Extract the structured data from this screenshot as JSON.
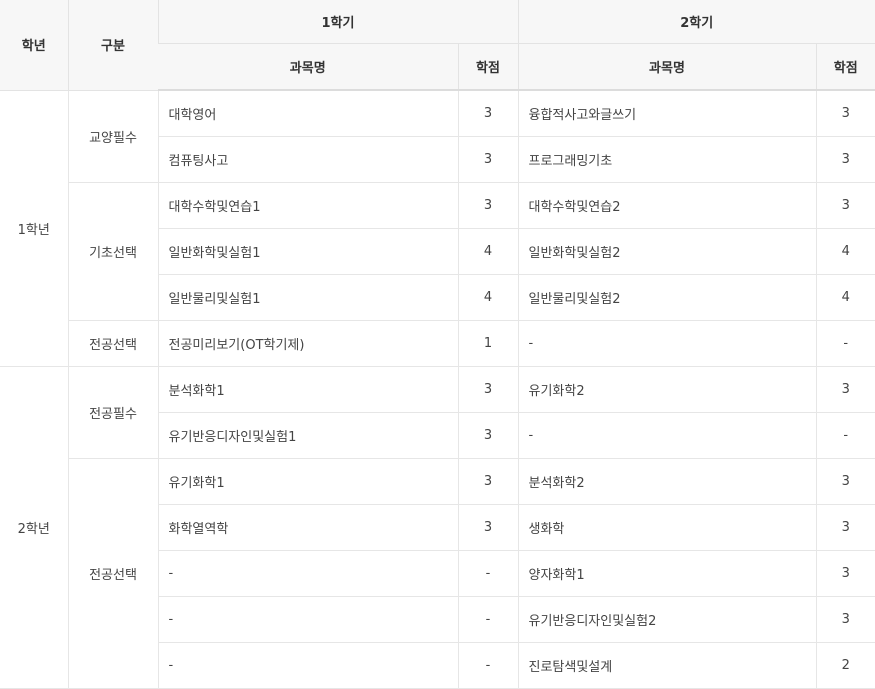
{
  "header": {
    "year": "학년",
    "category": "구분",
    "semester1": "1학기",
    "semester2": "2학기",
    "course_name": "과목명",
    "credits": "학점"
  },
  "years": [
    {
      "year": "1학년",
      "groups": [
        {
          "category": "교양필수",
          "rows": [
            {
              "s1_name": "대학영어",
              "s1_credit": "3",
              "s2_name": "융합적사고와글쓰기",
              "s2_credit": "3"
            },
            {
              "s1_name": "컴퓨팅사고",
              "s1_credit": "3",
              "s2_name": "프로그래밍기초",
              "s2_credit": "3"
            }
          ]
        },
        {
          "category": "기초선택",
          "rows": [
            {
              "s1_name": "대학수학및연습1",
              "s1_credit": "3",
              "s2_name": "대학수학및연습2",
              "s2_credit": "3"
            },
            {
              "s1_name": "일반화학및실험1",
              "s1_credit": "4",
              "s2_name": "일반화학및실험2",
              "s2_credit": "4"
            },
            {
              "s1_name": "일반물리및실험1",
              "s1_credit": "4",
              "s2_name": "일반물리및실험2",
              "s2_credit": "4"
            }
          ]
        },
        {
          "category": "전공선택",
          "rows": [
            {
              "s1_name": "전공미리보기(OT학기제)",
              "s1_credit": "1",
              "s2_name": "-",
              "s2_credit": "-"
            }
          ]
        }
      ]
    },
    {
      "year": "2학년",
      "groups": [
        {
          "category": "전공필수",
          "rows": [
            {
              "s1_name": "분석화학1",
              "s1_credit": "3",
              "s2_name": "유기화학2",
              "s2_credit": "3"
            },
            {
              "s1_name": "유기반응디자인및실험1",
              "s1_credit": "3",
              "s2_name": "-",
              "s2_credit": "-"
            }
          ]
        },
        {
          "category": "전공선택",
          "rows": [
            {
              "s1_name": "유기화학1",
              "s1_credit": "3",
              "s2_name": "분석화학2",
              "s2_credit": "3"
            },
            {
              "s1_name": "화학열역학",
              "s1_credit": "3",
              "s2_name": "생화학",
              "s2_credit": "3"
            },
            {
              "s1_name": "-",
              "s1_credit": "-",
              "s2_name": "양자화학1",
              "s2_credit": "3"
            },
            {
              "s1_name": "-",
              "s1_credit": "-",
              "s2_name": "유기반응디자인및실험2",
              "s2_credit": "3"
            },
            {
              "s1_name": "-",
              "s1_credit": "-",
              "s2_name": "진로탐색및설계",
              "s2_credit": "2"
            }
          ]
        }
      ]
    }
  ]
}
